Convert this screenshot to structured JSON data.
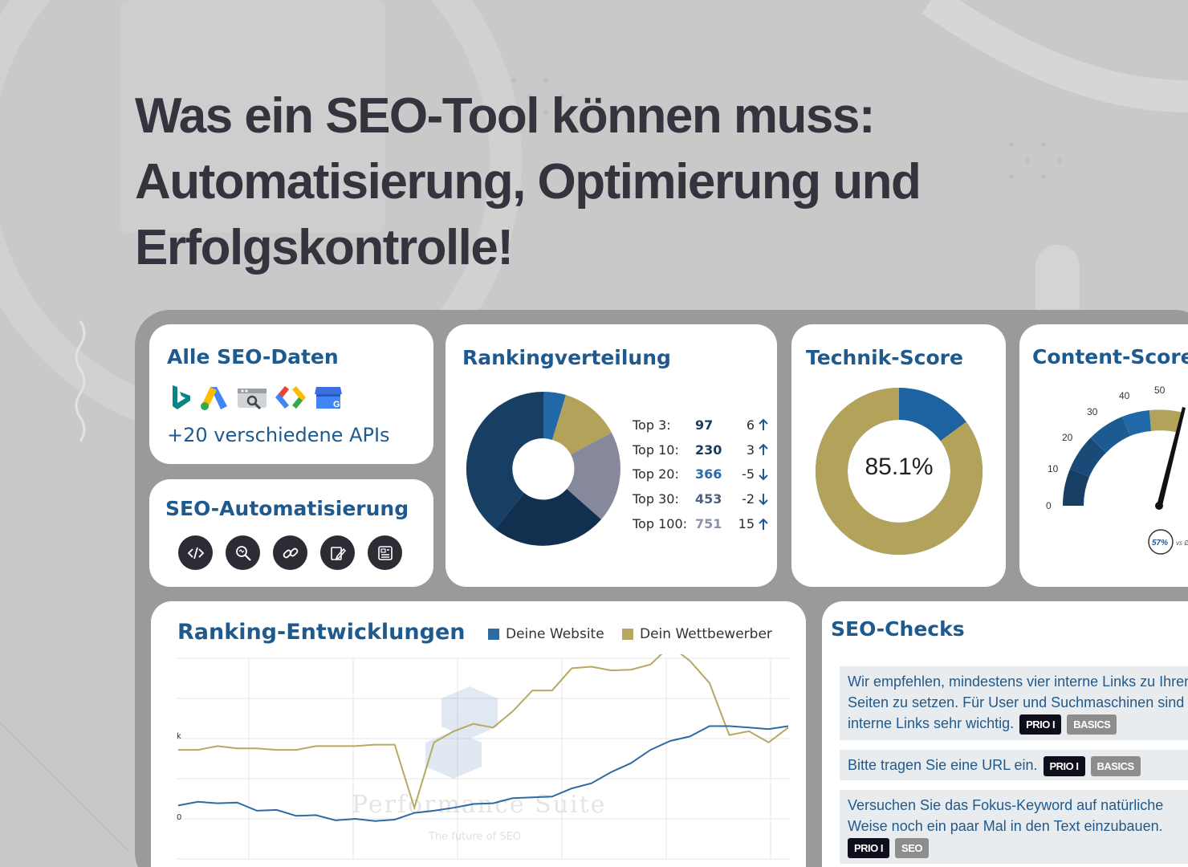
{
  "headline": {
    "line1": "Was ein SEO-Tool können muss:",
    "line2": "Automatisierung, Optimierung und",
    "line3": "Erfolgskontrolle!"
  },
  "cards": {
    "apis": {
      "title": "Alle SEO-Daten",
      "subtitle": "+20 verschiedene APIs",
      "logos": [
        "bing-icon",
        "google-ads-icon",
        "search-console-icon",
        "tag-manager-icon",
        "my-business-icon"
      ]
    },
    "automation": {
      "title": "SEO-Automatisierung",
      "icons": [
        "code-icon",
        "search-analyze-icon",
        "link-icon",
        "edit-icon",
        "report-icon"
      ]
    },
    "ranking": {
      "title": "Rankingverteilung",
      "rows": [
        {
          "label": "Top 3:",
          "value": "97",
          "delta": "6",
          "dir": "up"
        },
        {
          "label": "Top 10:",
          "value": "230",
          "delta": "3",
          "dir": "up"
        },
        {
          "label": "Top 20:",
          "value": "366",
          "delta": "-5",
          "dir": "down"
        },
        {
          "label": "Top 30:",
          "value": "453",
          "delta": "-2",
          "dir": "down"
        },
        {
          "label": "Top 100:",
          "value": "751",
          "delta": "15",
          "dir": "up"
        }
      ]
    },
    "technik": {
      "title": "Technik-Score",
      "score": "85.1%",
      "score_fraction": 0.851
    },
    "content": {
      "title": "Content-Score",
      "gauge_ticks": [
        "0",
        "10",
        "20",
        "30",
        "40",
        "50"
      ],
      "badge": "57%",
      "badge_suffix": "vs Ø"
    },
    "development": {
      "title": "Ranking-Entwicklungen",
      "legend_own": "Deine Website",
      "legend_competitor": "Dein Wettbewerber",
      "axis_marks": [
        "k",
        "0"
      ],
      "watermark_title": "Performance Suite",
      "watermark_sub": "The future of SEO"
    },
    "checks": {
      "title": "SEO-Checks",
      "items": [
        {
          "text": "Wir empfehlen, mindestens vier interne Links zu Ihren Seiten zu setzen. Für User und Suchmaschinen sind interne Links sehr wichtig.",
          "badge1": "PRIO I",
          "badge2": "BASICS"
        },
        {
          "text": "Bitte tragen Sie eine URL ein.",
          "badge1": "PRIO I",
          "badge2": "BASICS"
        },
        {
          "text": "Versuchen Sie das Fokus-Keyword auf natürliche Weise noch ein paar Mal in den Text einzubauen.",
          "badge1": "PRIO I",
          "badge2": "SEO"
        }
      ]
    }
  },
  "colors": {
    "title_blue": "#1f5a8e",
    "own_series": "#2e6aa3",
    "competitor_series": "#b8a862",
    "donut_dark": "#173e63",
    "donut_gold": "#b3a35a"
  },
  "chart_data": {
    "type": "line",
    "series": [
      {
        "name": "Deine Website",
        "values": [
          0.45,
          0.5,
          0.48,
          0.49,
          0.38,
          0.39,
          0.31,
          0.32,
          0.25,
          0.27,
          0.24,
          0.26,
          0.35,
          0.38,
          0.42,
          0.47,
          0.48,
          0.55,
          0.56,
          0.57,
          0.68,
          0.75,
          0.9,
          1.02,
          1.2,
          1.32,
          1.38,
          1.52,
          1.52,
          1.5,
          1.48,
          1.52
        ]
      },
      {
        "name": "Dein Wettbewerber",
        "values": [
          1.2,
          1.2,
          1.25,
          1.22,
          1.22,
          1.2,
          1.2,
          1.25,
          1.25,
          1.25,
          1.27,
          1.27,
          0.42,
          1.3,
          1.45,
          1.55,
          1.5,
          1.72,
          2.0,
          2.0,
          2.3,
          2.32,
          2.27,
          2.28,
          2.35,
          2.6,
          2.4,
          2.1,
          1.4,
          1.45,
          1.3,
          1.5
        ]
      }
    ]
  }
}
